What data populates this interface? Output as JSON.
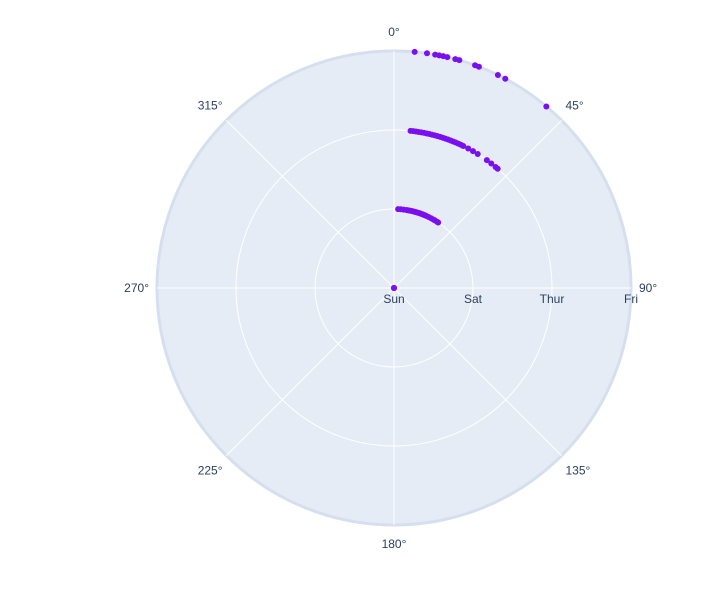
{
  "chart_data": {
    "type": "scatter",
    "polar": true,
    "angular_axis": {
      "direction": "clockwise",
      "rotation_start": "top",
      "unit": "degrees",
      "tick_labels": [
        "0°",
        "45°",
        "90°",
        "135°",
        "180°",
        "225°",
        "270°",
        "315°"
      ],
      "tick_values": [
        0,
        45,
        90,
        135,
        180,
        225,
        270,
        315
      ]
    },
    "radial_axis": {
      "type": "category",
      "categories": [
        "Sun",
        "Sat",
        "Thur",
        "Fri"
      ],
      "tick_labels": [
        "Sun",
        "Sat",
        "Thur",
        "Fri"
      ],
      "label_angle": 90
    },
    "grid": true,
    "colors": {
      "background": "#e5ecf6",
      "grid": "#ffffff",
      "marker": "#7a0ff0",
      "tick_text": "#2a3f5f"
    },
    "series": [
      {
        "marker_color": "#7a0ff0",
        "points": [
          {
            "r": "Sun",
            "theta": 0
          },
          {
            "r": "Sun",
            "theta": 2
          },
          {
            "r": "Sun",
            "theta": 4
          },
          {
            "r": "Sun",
            "theta": 6
          },
          {
            "r": "Sat",
            "theta": 3
          },
          {
            "r": "Sat",
            "theta": 5
          },
          {
            "r": "Sat",
            "theta": 7
          },
          {
            "r": "Sat",
            "theta": 9
          },
          {
            "r": "Sat",
            "theta": 10
          },
          {
            "r": "Sat",
            "theta": 11
          },
          {
            "r": "Sat",
            "theta": 12
          },
          {
            "r": "Sat",
            "theta": 13
          },
          {
            "r": "Sat",
            "theta": 14
          },
          {
            "r": "Sat",
            "theta": 15
          },
          {
            "r": "Sat",
            "theta": 16
          },
          {
            "r": "Sat",
            "theta": 17
          },
          {
            "r": "Sat",
            "theta": 18
          },
          {
            "r": "Sat",
            "theta": 19
          },
          {
            "r": "Sat",
            "theta": 20
          },
          {
            "r": "Sat",
            "theta": 21
          },
          {
            "r": "Sat",
            "theta": 22
          },
          {
            "r": "Sat",
            "theta": 23
          },
          {
            "r": "Sat",
            "theta": 24
          },
          {
            "r": "Sat",
            "theta": 26
          },
          {
            "r": "Sat",
            "theta": 28
          },
          {
            "r": "Sat",
            "theta": 30
          },
          {
            "r": "Sat",
            "theta": 31
          },
          {
            "r": "Sat",
            "theta": 33
          },
          {
            "r": "Sat",
            "theta": 34
          },
          {
            "r": "Thur",
            "theta": 6
          },
          {
            "r": "Thur",
            "theta": 7
          },
          {
            "r": "Thur",
            "theta": 8
          },
          {
            "r": "Thur",
            "theta": 9
          },
          {
            "r": "Thur",
            "theta": 10
          },
          {
            "r": "Thur",
            "theta": 11
          },
          {
            "r": "Thur",
            "theta": 12
          },
          {
            "r": "Thur",
            "theta": 13
          },
          {
            "r": "Thur",
            "theta": 14
          },
          {
            "r": "Thur",
            "theta": 15
          },
          {
            "r": "Thur",
            "theta": 16
          },
          {
            "r": "Thur",
            "theta": 17
          },
          {
            "r": "Thur",
            "theta": 18
          },
          {
            "r": "Thur",
            "theta": 19
          },
          {
            "r": "Thur",
            "theta": 20
          },
          {
            "r": "Thur",
            "theta": 21
          },
          {
            "r": "Thur",
            "theta": 22
          },
          {
            "r": "Thur",
            "theta": 23
          },
          {
            "r": "Thur",
            "theta": 24
          },
          {
            "r": "Thur",
            "theta": 25
          },
          {
            "r": "Thur",
            "theta": 26
          },
          {
            "r": "Thur",
            "theta": 28
          },
          {
            "r": "Thur",
            "theta": 30
          },
          {
            "r": "Thur",
            "theta": 32
          },
          {
            "r": "Thur",
            "theta": 36
          },
          {
            "r": "Thur",
            "theta": 38
          },
          {
            "r": "Thur",
            "theta": 40
          },
          {
            "r": "Thur",
            "theta": 41
          },
          {
            "r": "Fri",
            "theta": 5
          },
          {
            "r": "Fri",
            "theta": 8
          },
          {
            "r": "Fri",
            "theta": 10
          },
          {
            "r": "Fri",
            "theta": 11
          },
          {
            "r": "Fri",
            "theta": 12
          },
          {
            "r": "Fri",
            "theta": 13
          },
          {
            "r": "Fri",
            "theta": 15
          },
          {
            "r": "Fri",
            "theta": 16
          },
          {
            "r": "Fri",
            "theta": 20
          },
          {
            "r": "Fri",
            "theta": 21
          },
          {
            "r": "Fri",
            "theta": 26
          },
          {
            "r": "Fri",
            "theta": 28
          },
          {
            "r": "Fri",
            "theta": 40
          }
        ]
      }
    ]
  }
}
